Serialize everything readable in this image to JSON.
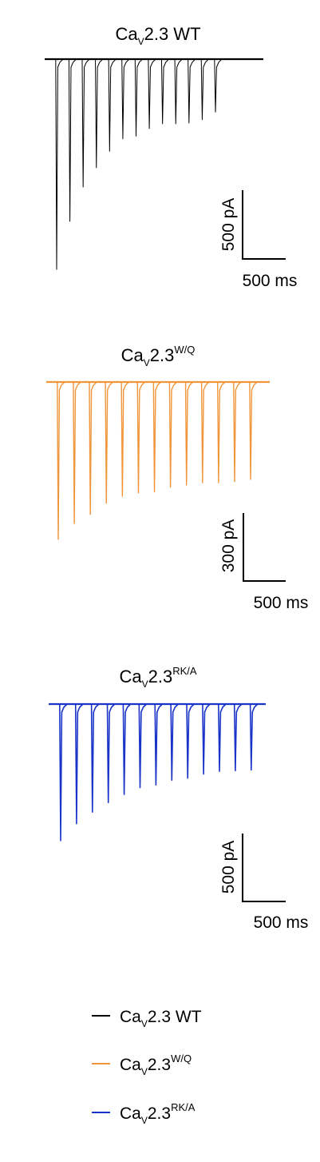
{
  "colors": {
    "wt": "#000000",
    "wq": "#f0953a",
    "rka": "#1a33c8",
    "scale_bar": "#000000"
  },
  "panels": [
    {
      "key": "wt",
      "title": {
        "base": "Ca",
        "sub": "V",
        "rest": "2.3 WT",
        "sup": ""
      },
      "scale": {
        "y_label": "500 pA",
        "x_label": "500 ms"
      }
    },
    {
      "key": "wq",
      "title": {
        "base": "Ca",
        "sub": "V",
        "rest": "2.3",
        "sup": "W/Q"
      },
      "scale": {
        "y_label": "300 pA",
        "x_label": "500 ms"
      }
    },
    {
      "key": "rka",
      "title": {
        "base": "Ca",
        "sub": "V",
        "rest": "2.3",
        "sup": "RK/A"
      },
      "scale": {
        "y_label": "500 pA",
        "x_label": "500 ms"
      }
    }
  ],
  "legend": [
    {
      "key": "wt",
      "base": "Ca",
      "sub": "V",
      "rest": "2.3 WT",
      "sup": ""
    },
    {
      "key": "wq",
      "base": "Ca",
      "sub": "V",
      "rest": "2.3",
      "sup": "W/Q"
    },
    {
      "key": "rka",
      "base": "Ca",
      "sub": "V",
      "rest": "2.3",
      "sup": "RK/A"
    }
  ],
  "chart_data": [
    {
      "type": "line",
      "name": "Ca_V2.3 WT",
      "x_unit": "ms",
      "y_unit": "pA",
      "stimulus_times_ms": [
        0,
        152,
        304,
        456,
        608,
        760,
        912,
        1064,
        1216,
        1368,
        1520,
        1672,
        1824
      ],
      "peak_amplitudes_pA": [
        -1530,
        -1180,
        -930,
        -790,
        -670,
        -580,
        -560,
        -505,
        -470,
        -470,
        -465,
        -440,
        -385
      ],
      "scale_bar": {
        "y": 500,
        "y_unit": "pA",
        "x": 500,
        "x_unit": "ms"
      }
    },
    {
      "type": "line",
      "name": "Ca_V2.3^W/Q",
      "x_unit": "ms",
      "y_unit": "pA",
      "stimulus_times_ms": [
        0,
        124,
        248,
        372,
        496,
        620,
        744,
        868,
        992,
        1116,
        1240,
        1364,
        1488
      ],
      "peak_amplitudes_pA": [
        -695,
        -625,
        -585,
        -535,
        -505,
        -490,
        -485,
        -465,
        -455,
        -445,
        -445,
        -440,
        -430
      ],
      "scale_bar": {
        "y": 300,
        "y_unit": "pA",
        "x": 500,
        "x_unit": "ms"
      }
    },
    {
      "type": "line",
      "name": "Ca_V2.3^RK/A",
      "x_unit": "ms",
      "y_unit": "pA",
      "stimulus_times_ms": [
        0,
        125,
        250,
        375,
        500,
        625,
        750,
        875,
        1000,
        1125,
        1250,
        1375,
        1500
      ],
      "peak_amplitudes_pA": [
        -1005,
        -880,
        -795,
        -725,
        -665,
        -615,
        -595,
        -560,
        -545,
        -515,
        -495,
        -490,
        -485
      ],
      "scale_bar": {
        "y": 500,
        "y_unit": "pA",
        "x": 500,
        "x_unit": "ms"
      }
    }
  ]
}
